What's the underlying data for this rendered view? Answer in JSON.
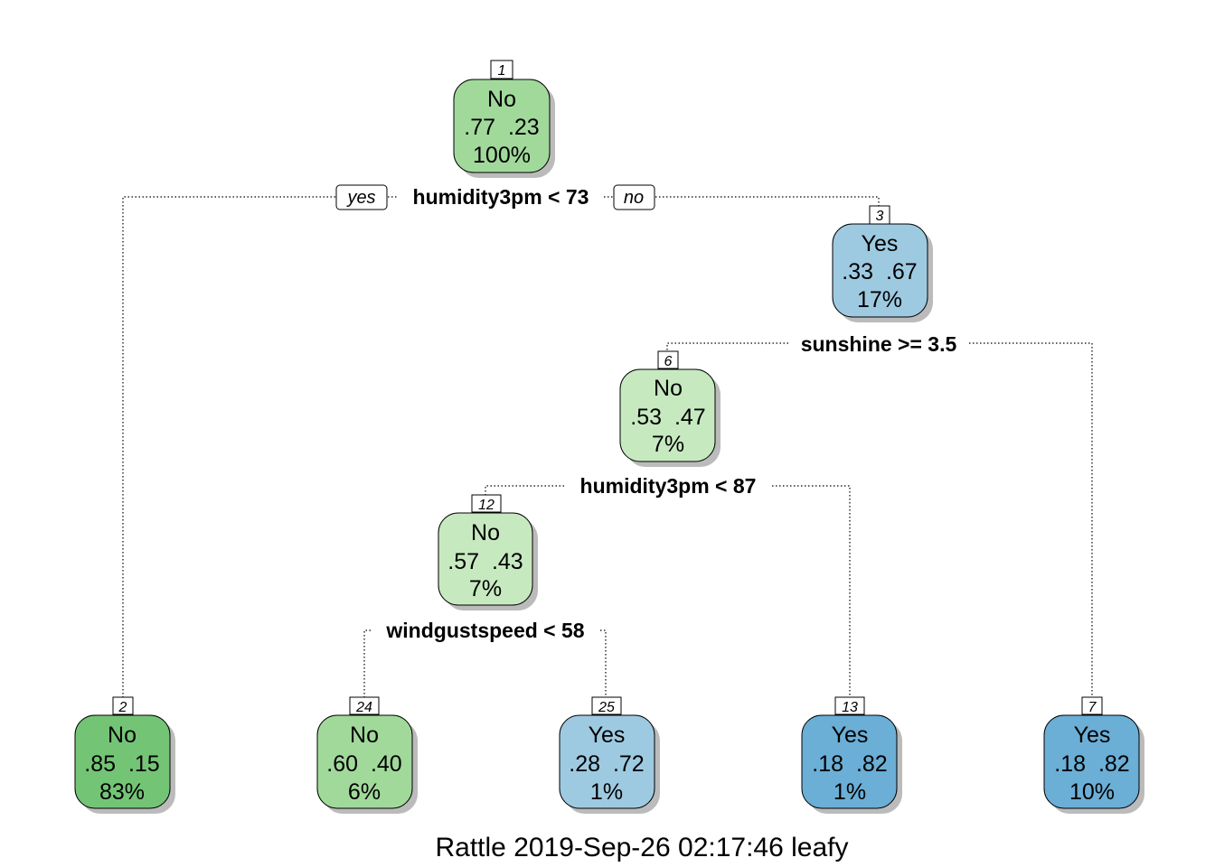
{
  "colors": {
    "no_dark": "#74c476",
    "no_mid": "#a1d99b",
    "no_light": "#c7e9c0",
    "yes_light": "#9ecae1",
    "yes_dark": "#6baed6"
  },
  "nodes": {
    "n1": {
      "num": "1",
      "cls": "No",
      "probs": ".77  .23",
      "pct": "100%"
    },
    "n3": {
      "num": "3",
      "cls": "Yes",
      "probs": ".33  .67",
      "pct": "17%"
    },
    "n6": {
      "num": "6",
      "cls": "No",
      "probs": ".53  .47",
      "pct": "7%"
    },
    "n12": {
      "num": "12",
      "cls": "No",
      "probs": ".57  .43",
      "pct": "7%"
    },
    "n2": {
      "num": "2",
      "cls": "No",
      "probs": ".85  .15",
      "pct": "83%"
    },
    "n24": {
      "num": "24",
      "cls": "No",
      "probs": ".60  .40",
      "pct": "6%"
    },
    "n25": {
      "num": "25",
      "cls": "Yes",
      "probs": ".28  .72",
      "pct": "1%"
    },
    "n13": {
      "num": "13",
      "cls": "Yes",
      "probs": ".18  .82",
      "pct": "1%"
    },
    "n7": {
      "num": "7",
      "cls": "Yes",
      "probs": ".18  .82",
      "pct": "10%"
    }
  },
  "splits": {
    "s1": "humidity3pm < 73",
    "s3": "sunshine >= 3.5",
    "s6": "humidity3pm < 87",
    "s12": "windgustspeed < 58"
  },
  "branch_labels": {
    "yes": "yes",
    "no": "no"
  },
  "footer": "Rattle 2019-Sep-26 02:17:46 leafy"
}
